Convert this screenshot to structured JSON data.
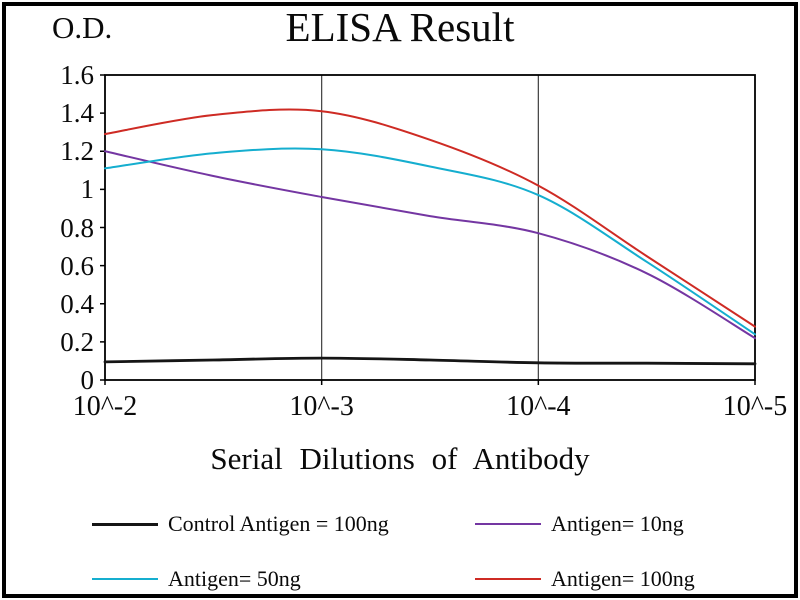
{
  "chart_data": {
    "type": "line",
    "title": "ELISA Result",
    "ylabel": "O.D.",
    "xlabel": "Serial Dilutions of Antibody",
    "x_tick_labels": [
      "10^-2",
      "10^-3",
      "10^-4",
      "10^-5"
    ],
    "y_ticks": [
      0,
      0.2,
      0.4,
      0.6,
      0.8,
      1,
      1.2,
      1.4,
      1.6
    ],
    "y_tick_labels": [
      "0",
      "0.2",
      "0.4",
      "0.6",
      "0.8",
      "1",
      "1.2",
      "1.4",
      "1.6"
    ],
    "ylim": [
      0,
      1.6
    ],
    "grid": "vertical-only",
    "legend_position": "bottom",
    "series": [
      {
        "name": "Control Antigen = 100ng",
        "color": "#151515",
        "line_width": 2.8,
        "x": [
          0,
          0.5,
          1,
          1.5,
          2,
          2.5,
          3
        ],
        "y": [
          0.095,
          0.105,
          0.115,
          0.105,
          0.09,
          0.088,
          0.085
        ]
      },
      {
        "name": "Antigen= 10ng",
        "color": "#7436A2",
        "line_width": 2,
        "x": [
          0,
          0.5,
          1,
          1.5,
          2,
          2.5,
          3
        ],
        "y": [
          1.2,
          1.07,
          0.96,
          0.86,
          0.77,
          0.56,
          0.22
        ]
      },
      {
        "name": "Antigen= 50ng",
        "color": "#15AECF",
        "line_width": 2,
        "x": [
          0,
          0.5,
          1,
          1.5,
          2,
          2.5,
          3
        ],
        "y": [
          1.11,
          1.19,
          1.21,
          1.12,
          0.97,
          0.62,
          0.24
        ]
      },
      {
        "name": "Antigen= 100ng",
        "color": "#CE2B24",
        "line_width": 2,
        "x": [
          0,
          0.5,
          1,
          1.5,
          2,
          2.5,
          3
        ],
        "y": [
          1.29,
          1.39,
          1.41,
          1.26,
          1.02,
          0.65,
          0.28
        ]
      }
    ]
  }
}
